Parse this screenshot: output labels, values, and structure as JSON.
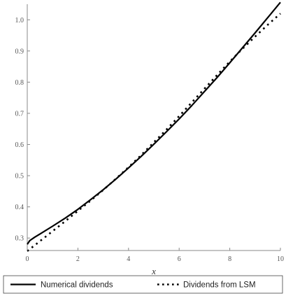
{
  "chart_data": {
    "type": "line",
    "title": "",
    "xlabel": "x",
    "ylabel": "",
    "xlim": [
      0,
      10
    ],
    "ylim": [
      0.26,
      1.05
    ],
    "x_ticks": [
      0,
      2,
      4,
      6,
      8,
      10
    ],
    "x_tick_labels": [
      "0",
      "2",
      "4",
      "6",
      "8",
      "10"
    ],
    "y_ticks": [
      0.3,
      0.4,
      0.5,
      0.6,
      0.7,
      0.8,
      0.9,
      1.0
    ],
    "y_tick_labels": [
      "0.3",
      "0.4",
      "0.5",
      "0.6",
      "0.7",
      "0.8",
      "0.9",
      "1.0"
    ],
    "grid": false,
    "legend_position": "bottom",
    "series": [
      {
        "name": "Numerical dividends",
        "style": "solid",
        "color": "#000000",
        "x": [
          0,
          0.1,
          0.3,
          0.5,
          1,
          1.5,
          2,
          2.5,
          3,
          3.5,
          4,
          4.5,
          5,
          5.5,
          6,
          6.5,
          7,
          7.5,
          8,
          8.5,
          9,
          9.5,
          10
        ],
        "y": [
          0.28,
          0.292,
          0.303,
          0.313,
          0.338,
          0.364,
          0.392,
          0.423,
          0.455,
          0.489,
          0.525,
          0.562,
          0.601,
          0.641,
          0.682,
          0.725,
          0.77,
          0.815,
          0.862,
          0.91,
          0.958,
          1.007,
          1.056
        ]
      },
      {
        "name": "Dividends from LSM",
        "style": "dotted",
        "color": "#000000",
        "x": [
          0,
          0.5,
          1,
          1.5,
          2,
          2.5,
          3,
          3.5,
          4,
          4.5,
          5,
          5.5,
          6,
          6.5,
          7,
          7.5,
          8,
          8.5,
          9,
          9.5,
          10
        ],
        "y": [
          0.258,
          0.29,
          0.322,
          0.354,
          0.387,
          0.42,
          0.454,
          0.49,
          0.527,
          0.566,
          0.607,
          0.648,
          0.691,
          0.735,
          0.779,
          0.823,
          0.866,
          0.907,
          0.946,
          0.984,
          1.02
        ]
      }
    ]
  }
}
